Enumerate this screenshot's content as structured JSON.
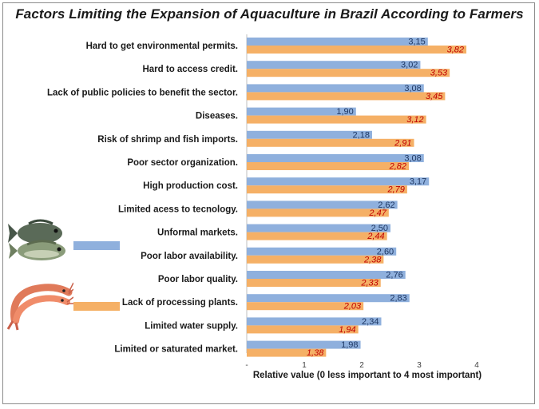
{
  "chart_data": {
    "type": "bar",
    "orientation": "horizontal",
    "title": "Factors Limiting the Expansion of Aquaculture in Brazil According to Farmers",
    "xlabel": "Relative value (0 less important to 4 most important)",
    "ylabel": "",
    "xlim": [
      0,
      4
    ],
    "x_ticks": [
      "-",
      "1",
      "2",
      "3",
      "4"
    ],
    "grid": false,
    "legend_position": "left",
    "categories": [
      "Hard to get environmental permits.",
      "Hard to access credit.",
      "Lack of public policies to benefit the sector.",
      "Diseases.",
      "Risk of shrimp and fish imports.",
      "Poor sector organization.",
      "High production cost.",
      "Limited acess to tecnology.",
      "Unformal markets.",
      "Poor labor availability.",
      "Poor labor quality.",
      "Lack of processing plants.",
      "Limited water supply.",
      "Limited or saturated market."
    ],
    "series": [
      {
        "legend_icon": "fish-icon",
        "color": "#8fb0dd",
        "label_color": "#1f3864",
        "values": [
          3.15,
          3.02,
          3.08,
          1.9,
          2.18,
          3.08,
          3.17,
          2.62,
          2.5,
          2.6,
          2.76,
          2.83,
          2.34,
          1.98
        ],
        "labels": [
          "3,15",
          "3,02",
          "3,08",
          "1,90",
          "2,18",
          "3,08",
          "3,17",
          "2,62",
          "2,50",
          "2,60",
          "2,76",
          "2,83",
          "2,34",
          "1,98"
        ]
      },
      {
        "legend_icon": "shrimp-icon",
        "color": "#f5b066",
        "label_color": "#c00000",
        "values": [
          3.82,
          3.53,
          3.45,
          3.12,
          2.91,
          2.82,
          2.79,
          2.47,
          2.44,
          2.38,
          2.33,
          2.03,
          1.94,
          1.38
        ],
        "labels": [
          "3,82",
          "3,53",
          "3,45",
          "3,12",
          "2,91",
          "2,82",
          "2,79",
          "2,47",
          "2,44",
          "2,38",
          "2,33",
          "2,03",
          "1,94",
          "1,38"
        ]
      }
    ]
  }
}
